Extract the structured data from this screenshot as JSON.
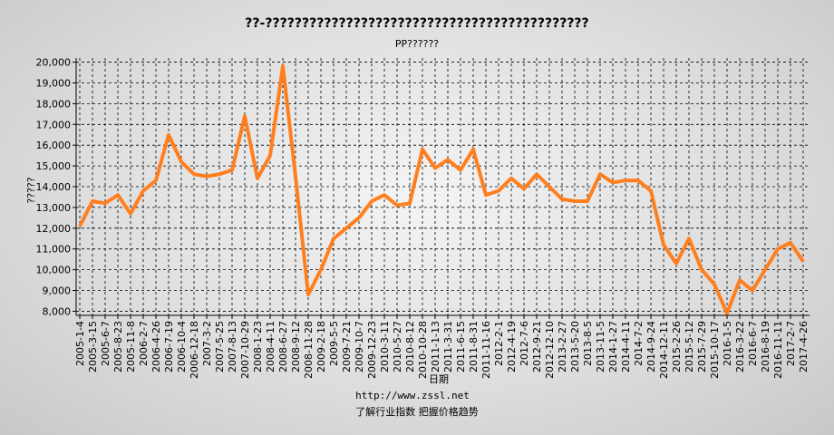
{
  "chart_data": {
    "type": "line",
    "title": "??-????????????????????????????????????????????",
    "subtitle": "PP??????",
    "y_label": "?????",
    "x_label": "日期",
    "footer_url": "http://www.zssl.net",
    "footer_slogan": "了解行业指数   把握价格趋势",
    "categories": [
      "2005-1-4",
      "2005-3-15",
      "2005-6-7",
      "2005-8-23",
      "2005-11-8",
      "2006-2-7",
      "2006-4-26",
      "2006-7-19",
      "2006-10-4",
      "2006-12-18",
      "2007-3-2",
      "2007-5-25",
      "2007-8-13",
      "2007-10-29",
      "2008-1-23",
      "2008-4-11",
      "2008-6-27",
      "2008-9-12",
      "2008-11-28",
      "2009-2-18",
      "2009-5-5",
      "2009-7-21",
      "2009-10-7",
      "2009-12-23",
      "2010-3-11",
      "2010-5-27",
      "2010-8-12",
      "2010-10-28",
      "2011-1-13",
      "2011-3-31",
      "2011-6-15",
      "2011-8-31",
      "2011-11-16",
      "2012-2-1",
      "2012-4-19",
      "2012-7-6",
      "2012-9-21",
      "2012-12-10",
      "2013-2-27",
      "2013-5-20",
      "2013-8-5",
      "2013-11-5",
      "2014-1-27",
      "2014-4-11",
      "2014-7-2",
      "2014-9-24",
      "2014-12-11",
      "2015-2-26",
      "2015-5-12",
      "2015-7-29",
      "2015-10-17",
      "2016-1-5",
      "2016-3-22",
      "2016-6-7",
      "2016-8-19",
      "2016-11-11",
      "2017-2-7",
      "2017-4-26"
    ],
    "series": [
      {
        "color": "#ff7f1e",
        "values": [
          12100,
          13300,
          13200,
          13600,
          12700,
          13800,
          14300,
          16500,
          15200,
          14600,
          14500,
          14600,
          14800,
          17400,
          14400,
          15500,
          19800,
          14500,
          8800,
          10000,
          11500,
          12000,
          12500,
          13300,
          13600,
          13100,
          13200,
          15800,
          14900,
          15300,
          14800,
          15800,
          13600,
          13800,
          14400,
          13900,
          14600,
          14000,
          13400,
          13300,
          13300,
          14600,
          14200,
          14300,
          14300,
          13800,
          11200,
          10300,
          11500,
          10000,
          9300,
          7900,
          9500,
          9000,
          10000,
          11000,
          11300,
          10400
        ]
      }
    ],
    "ylim": [
      7800,
      20200
    ],
    "yticks": [
      {
        "value": 8000,
        "label": "8,000"
      },
      {
        "value": 9000,
        "label": "9,000"
      },
      {
        "value": 10000,
        "label": "10,000"
      },
      {
        "value": 11000,
        "label": "11,000"
      },
      {
        "value": 12000,
        "label": "12,000"
      },
      {
        "value": 13000,
        "label": "13,000"
      },
      {
        "value": 14000,
        "label": "14,000"
      },
      {
        "value": 15000,
        "label": "15,000"
      },
      {
        "value": 16000,
        "label": "16,000"
      },
      {
        "value": 17000,
        "label": "17,000"
      },
      {
        "value": 18000,
        "label": "18,000"
      },
      {
        "value": 19000,
        "label": "19,000"
      },
      {
        "value": 20000,
        "label": "20,000"
      }
    ],
    "grid": true
  }
}
